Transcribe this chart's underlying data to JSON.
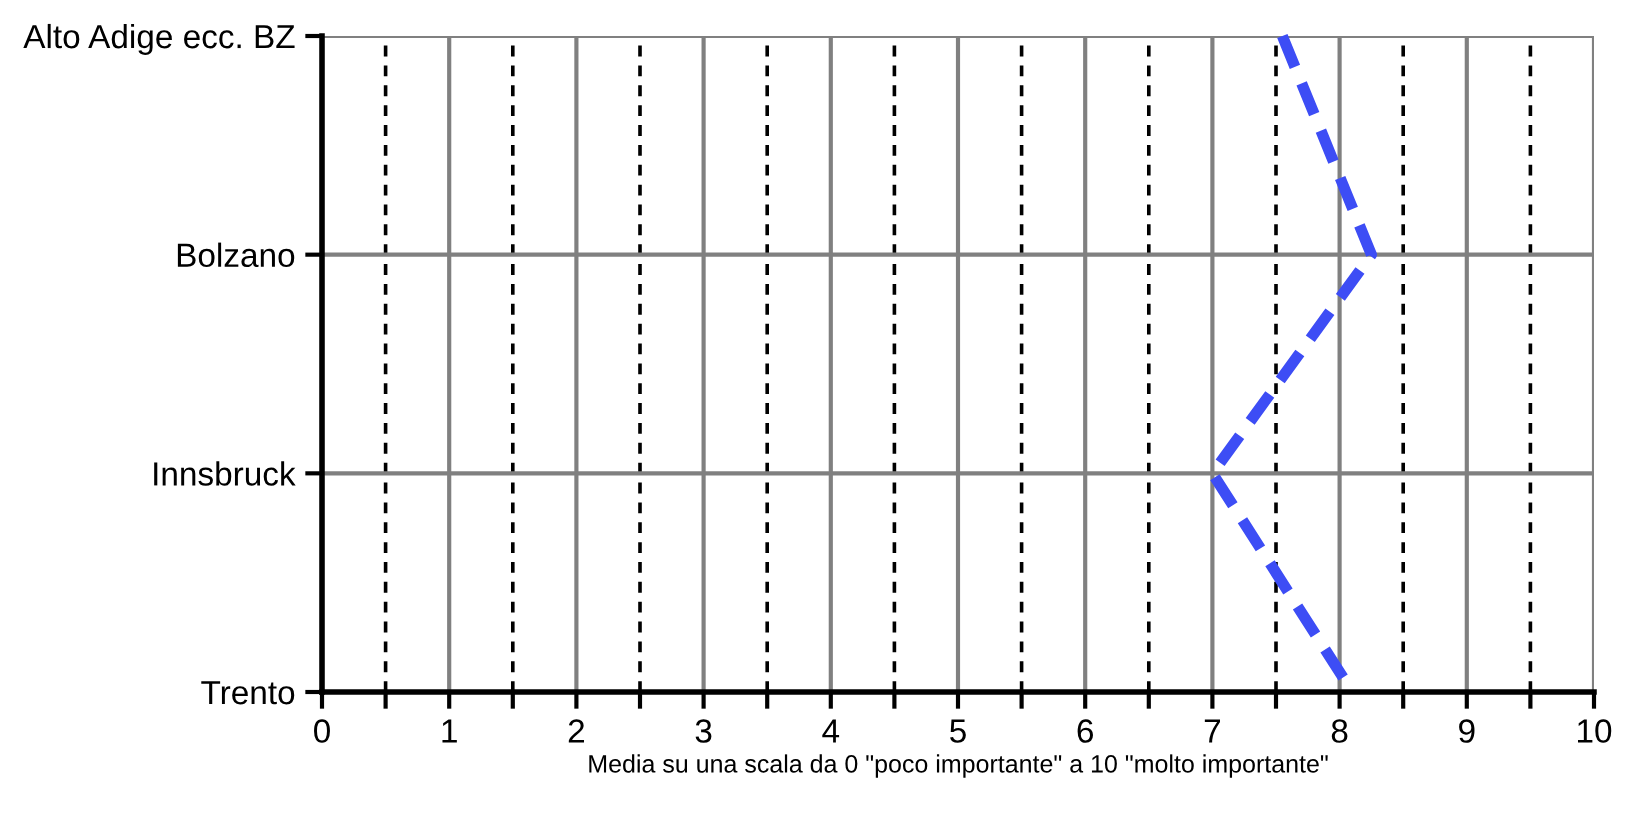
{
  "chart_data": {
    "type": "line",
    "orientation": "horizontal",
    "categories": [
      "Alto Adige ecc. BZ",
      "Bolzano",
      "Innsbruck",
      "Trento"
    ],
    "series": [
      {
        "color": "#3d4df5",
        "values": [
          7.55,
          8.25,
          7.0,
          8.1
        ]
      }
    ],
    "xlim": [
      0,
      10
    ],
    "xticks": [
      0,
      {
        "value": 0.5,
        "label": null
      },
      1,
      {
        "value": 1.5,
        "label": null
      },
      2,
      {
        "value": 2.5,
        "label": null
      },
      3,
      {
        "value": 3.5,
        "label": null
      },
      4,
      {
        "value": 4.5,
        "label": null
      },
      5,
      {
        "value": 5.5,
        "label": null
      },
      6,
      {
        "value": 6.5,
        "label": null
      },
      7,
      {
        "value": 7.5,
        "label": null
      },
      8,
      {
        "value": 8.5,
        "label": null
      },
      9,
      {
        "value": 9.5,
        "label": null
      },
      10
    ],
    "grid": true,
    "line_style": "dashed",
    "marker": "none",
    "legend": false,
    "annotations": [
      "Media su una scala da 0 \"poco importante\" a 10 \"molto importante\""
    ]
  }
}
